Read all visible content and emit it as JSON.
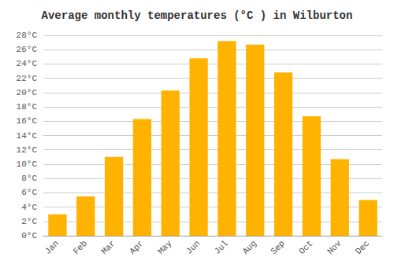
{
  "chart_data": {
    "type": "bar",
    "title": "Average monthly temperatures (°C ) in Wilburton",
    "categories": [
      "Jan",
      "Feb",
      "Mar",
      "Apr",
      "May",
      "Jun",
      "Jul",
      "Aug",
      "Sep",
      "Oct",
      "Nov",
      "Dec"
    ],
    "values": [
      3.0,
      5.5,
      11.0,
      16.3,
      20.3,
      24.8,
      27.2,
      26.7,
      22.8,
      16.7,
      10.7,
      5.0
    ],
    "color": "#FFB300",
    "ylim": [
      0,
      28
    ],
    "yticks": [
      {
        "value": 0,
        "label": "0°C"
      },
      {
        "value": 2,
        "label": "2°C"
      },
      {
        "value": 4,
        "label": "4°C"
      },
      {
        "value": 6,
        "label": "6°C"
      },
      {
        "value": 8,
        "label": "8°C"
      },
      {
        "value": 10,
        "label": "10°C"
      },
      {
        "value": 12,
        "label": "12°C"
      },
      {
        "value": 14,
        "label": "14°C"
      },
      {
        "value": 16,
        "label": "16°C"
      },
      {
        "value": 18,
        "label": "18°C"
      },
      {
        "value": 20,
        "label": "20°C"
      },
      {
        "value": 22,
        "label": "22°C"
      },
      {
        "value": 24,
        "label": "24°C"
      },
      {
        "value": 26,
        "label": "26°C"
      },
      {
        "value": 28,
        "label": "28°C"
      }
    ],
    "grid": true
  }
}
